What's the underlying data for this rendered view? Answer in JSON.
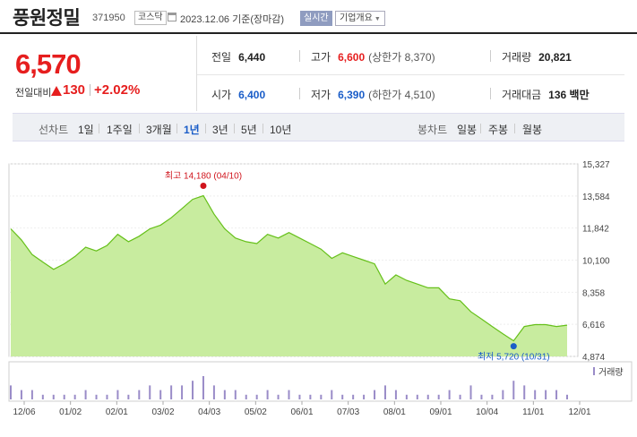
{
  "header": {
    "name": "풍원정밀",
    "code": "371950",
    "market": "코스닥",
    "date": "2023.12.06 기준(장마감)",
    "live_label": "실시간",
    "corp_label": "기업개요"
  },
  "quote": {
    "price": "6,570",
    "change_label": "전일대비",
    "change": "130",
    "change_pct": "+2.02%",
    "prev_label": "전일",
    "prev": "6,440",
    "open_label": "시가",
    "open": "6,400",
    "high_label": "고가",
    "high": "6,600",
    "upper": "(상한가 8,370)",
    "low_label": "저가",
    "low": "6,390",
    "lower": "(하한가 4,510)",
    "volume_label": "거래량",
    "volume": "20,821",
    "amount_label": "거래대금",
    "amount": "136 백만"
  },
  "periods": {
    "line_label": "선차트",
    "line": [
      "1일",
      "1주일",
      "3개월",
      "1년",
      "3년",
      "5년",
      "10년"
    ],
    "selected": "1년",
    "candle_label": "봉차트",
    "candle": [
      "일봉",
      "주봉",
      "월봉"
    ]
  },
  "colors": {
    "up": "#e61e1e",
    "down": "#1a5dc8",
    "area": "#c8ec9f",
    "line": "#66c01a",
    "volume": "#9a8cc8"
  },
  "chart_data": {
    "type": "area",
    "x_ticks": [
      "12/06",
      "01/02",
      "02/01",
      "03/02",
      "04/03",
      "05/02",
      "06/01",
      "07/03",
      "08/01",
      "09/01",
      "10/04",
      "11/01",
      "12/01"
    ],
    "y_ticks": [
      "15,327",
      "13,584",
      "11,842",
      "10,100",
      "8,358",
      "6,616",
      "4,874"
    ],
    "ylim": [
      4874,
      15327
    ],
    "high_annotation": "최고 14,180 (04/10)",
    "low_annotation": "최저 5,720 (10/31)",
    "volume_legend": "거래량",
    "x": [
      "12/06",
      "12/13",
      "12/20",
      "12/27",
      "01/02",
      "01/09",
      "01/16",
      "01/23",
      "01/30",
      "02/06",
      "02/13",
      "02/20",
      "02/27",
      "03/06",
      "03/13",
      "03/20",
      "03/27",
      "04/03",
      "04/10",
      "04/17",
      "04/24",
      "05/01",
      "05/08",
      "05/15",
      "05/22",
      "05/29",
      "06/05",
      "06/12",
      "06/19",
      "06/26",
      "07/03",
      "07/10",
      "07/17",
      "07/24",
      "07/31",
      "08/07",
      "08/14",
      "08/21",
      "08/28",
      "09/04",
      "09/11",
      "09/18",
      "09/25",
      "10/02",
      "10/09",
      "10/16",
      "10/23",
      "10/31",
      "11/06",
      "11/13",
      "11/20",
      "11/27",
      "12/06"
    ],
    "values": [
      11800,
      11200,
      10400,
      10000,
      9600,
      9900,
      10300,
      10800,
      10600,
      10900,
      11500,
      11100,
      11400,
      11800,
      12000,
      12400,
      12900,
      13400,
      13600,
      12600,
      11800,
      11300,
      11100,
      11000,
      11500,
      11300,
      11600,
      11300,
      11000,
      10700,
      10200,
      10500,
      10300,
      10100,
      9900,
      8800,
      9300,
      9000,
      8800,
      8600,
      8600,
      8000,
      7900,
      7300,
      6900,
      6500,
      6100,
      5720,
      6500,
      6600,
      6600,
      6500,
      6570
    ],
    "volume": [
      3,
      2,
      2,
      1,
      1,
      1,
      1,
      2,
      1,
      1,
      2,
      1,
      2,
      3,
      2,
      3,
      3,
      4,
      5,
      3,
      2,
      2,
      1,
      1,
      2,
      1,
      2,
      1,
      1,
      1,
      2,
      1,
      1,
      1,
      2,
      3,
      2,
      1,
      1,
      1,
      1,
      2,
      1,
      3,
      1,
      1,
      2,
      4,
      3,
      2,
      2,
      2,
      1
    ]
  }
}
